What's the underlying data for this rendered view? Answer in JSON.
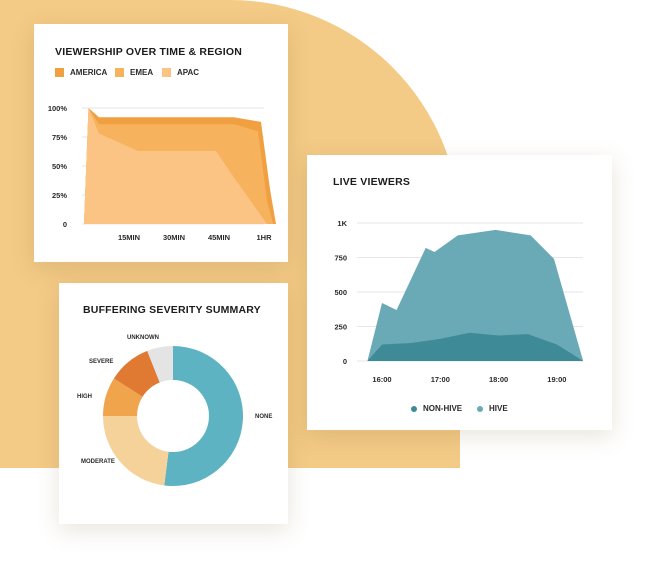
{
  "colors": {
    "background_blob": "#f3ca86",
    "america": "#f0a041",
    "emea": "#f6b25c",
    "apac": "#fbc485",
    "hive": "#6aa9b6",
    "non_hive": "#3f8a97",
    "severity_none": "#5db3c2",
    "severity_moderate": "#f6d29b",
    "severity_high": "#f0a44b",
    "severity_severe": "#e07a33",
    "severity_unknown": "#e4e4e4"
  },
  "viewership": {
    "title": "VIEWERSHIP OVER TIME & REGION",
    "legend": [
      {
        "label": "AMERICA",
        "color": "#f0a041"
      },
      {
        "label": "EMEA",
        "color": "#f6b25c"
      },
      {
        "label": "APAC",
        "color": "#fbc485"
      }
    ]
  },
  "live": {
    "title": "LIVE VIEWERS",
    "legend": [
      {
        "label": "NON-HIVE",
        "color": "#3f8a97"
      },
      {
        "label": "HIVE",
        "color": "#6aa9b6"
      }
    ]
  },
  "buffering": {
    "title": "BUFFERING SEVERITY SUMMARY"
  },
  "chart_data": [
    {
      "type": "area",
      "title": "VIEWERSHIP OVER TIME & REGION",
      "x": [
        0,
        15,
        30,
        45,
        60
      ],
      "tick_labels_x": [
        "15MIN",
        "30MIN",
        "45MIN",
        "1HR"
      ],
      "tick_values_x": [
        15,
        30,
        45,
        60
      ],
      "yticks": [
        "100%",
        "75%",
        "50%",
        "25%",
        "0"
      ],
      "ylim": [
        0,
        100
      ],
      "series": [
        {
          "name": "AMERICA",
          "x": [
            0,
            1.5,
            5,
            18,
            50,
            59,
            62,
            64
          ],
          "values": [
            0,
            100,
            92,
            92,
            92,
            88,
            30,
            0
          ]
        },
        {
          "name": "EMEA",
          "x": [
            0,
            1.5,
            5,
            18,
            50,
            58,
            61,
            63
          ],
          "values": [
            0,
            100,
            86,
            86,
            86,
            80,
            20,
            0
          ]
        },
        {
          "name": "APAC",
          "x": [
            0,
            1.5,
            5,
            18,
            44,
            50,
            61
          ],
          "values": [
            0,
            100,
            78,
            63,
            63,
            40,
            0
          ]
        }
      ],
      "grid": true
    },
    {
      "type": "area",
      "title": "LIVE VIEWERS",
      "x_ticks": [
        "16:00",
        "17:00",
        "18:00",
        "19:00"
      ],
      "x_tick_values": [
        16,
        17,
        18,
        19
      ],
      "y_ticks": [
        "1K",
        "750",
        "500",
        "250",
        "0"
      ],
      "y_tick_values": [
        1000,
        750,
        500,
        250,
        0
      ],
      "ylim": [
        0,
        1000
      ],
      "series": [
        {
          "name": "HIVE",
          "x": [
            15.75,
            16.0,
            16.25,
            16.75,
            16.9,
            17.3,
            17.95,
            18.55,
            18.95,
            19.45
          ],
          "values": [
            0,
            420,
            370,
            820,
            790,
            910,
            950,
            910,
            740,
            0
          ]
        },
        {
          "name": "NON-HIVE",
          "x": [
            15.75,
            16.0,
            16.5,
            17.0,
            17.5,
            18.0,
            18.5,
            19.0,
            19.45
          ],
          "values": [
            0,
            120,
            130,
            160,
            205,
            185,
            195,
            120,
            0
          ]
        }
      ],
      "legend_position": "bottom",
      "grid": true
    },
    {
      "type": "pie",
      "title": "BUFFERING SEVERITY SUMMARY",
      "donut": true,
      "labels": [
        "NONE",
        "MODERATE",
        "HIGH",
        "SEVERE",
        "UNKNOWN"
      ],
      "values": [
        52,
        23,
        9,
        10,
        6
      ]
    }
  ]
}
